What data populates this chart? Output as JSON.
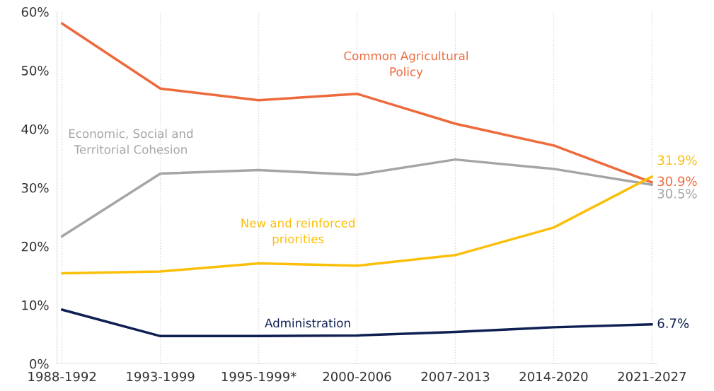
{
  "chart_data": {
    "type": "line",
    "categories": [
      "1988-1992",
      "1993-1999",
      "1995-1999*",
      "2000-2006",
      "2007-2013",
      "2014-2020",
      "2021-2027"
    ],
    "series": [
      {
        "name": "Common Agricultural Policy",
        "color": "#ee6a3c",
        "values": [
          58.0,
          46.9,
          44.9,
          46.0,
          40.9,
          37.2,
          30.9
        ],
        "value_labels": [
          null,
          null,
          null,
          null,
          null,
          null,
          "30.9%"
        ]
      },
      {
        "name": "Economic, Social and Territorial Cohesion",
        "color": "#a5a5a5",
        "values": [
          21.7,
          32.4,
          33.0,
          32.2,
          34.8,
          33.2,
          30.5
        ],
        "value_labels": [
          null,
          null,
          null,
          null,
          null,
          null,
          "30.5%"
        ]
      },
      {
        "name": "New and reinforced priorities",
        "color": "#fbbf0a",
        "values": [
          15.4,
          15.7,
          17.1,
          16.7,
          18.5,
          23.2,
          31.9
        ],
        "value_labels": [
          null,
          null,
          null,
          null,
          null,
          null,
          "31.9%"
        ]
      },
      {
        "name": "Administration",
        "color": "#0e1f52",
        "values": [
          9.2,
          4.7,
          4.7,
          4.8,
          5.4,
          6.2,
          6.7
        ],
        "value_labels": [
          null,
          null,
          null,
          null,
          null,
          null,
          "6.7%"
        ]
      }
    ],
    "ylim": [
      0,
      60
    ],
    "yticks": [
      {
        "value": 0,
        "label": "0%"
      },
      {
        "value": 10,
        "label": "10%"
      },
      {
        "value": 20,
        "label": "20%"
      },
      {
        "value": 30,
        "label": "30%"
      },
      {
        "value": 40,
        "label": "40%"
      },
      {
        "value": 50,
        "label": "50%"
      },
      {
        "value": 60,
        "label": "60%"
      }
    ],
    "grid": "x",
    "legend": false,
    "marker": "none",
    "line_style": "solid"
  }
}
